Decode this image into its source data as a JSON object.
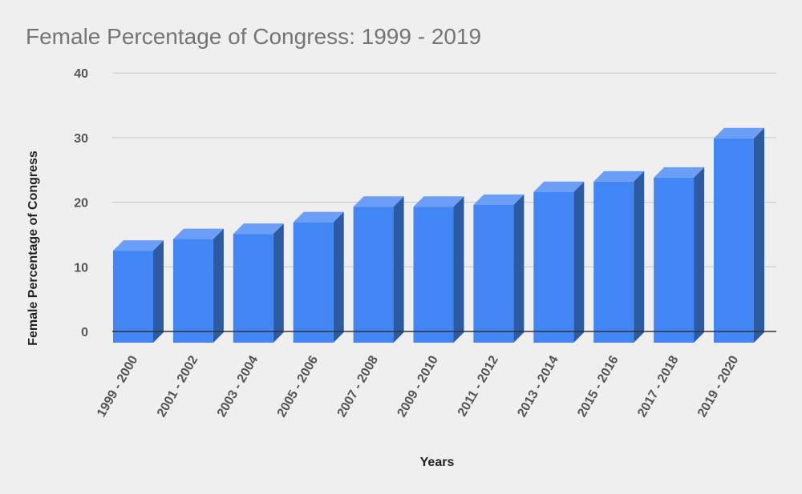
{
  "chart_data": {
    "type": "bar",
    "title": "Female Percentage of Congress: 1999 - 2019",
    "xlabel": "Years",
    "ylabel": "Female Percentage of Congress",
    "categories": [
      "1999 - 2000",
      "2001 - 2002",
      "2003 - 2004",
      "2005 - 2006",
      "2007 - 2008",
      "2009 - 2010",
      "2011 - 2012",
      "2013 - 2014",
      "2015 - 2016",
      "2017 - 2018",
      "2019 - 2020"
    ],
    "values": [
      12.5,
      14.3,
      15.1,
      16.9,
      19.3,
      19.3,
      19.6,
      21.6,
      23.2,
      23.8,
      29.9
    ],
    "ylim": [
      0,
      40
    ],
    "yticks": [
      0,
      10,
      20,
      30,
      40
    ],
    "grid": true,
    "legend": "none",
    "colors": {
      "front": "#4285f4",
      "top": "#6b9ef7",
      "side": "#2c5aa3",
      "background": "#efefef",
      "gridline": "#c6c6c6"
    }
  }
}
